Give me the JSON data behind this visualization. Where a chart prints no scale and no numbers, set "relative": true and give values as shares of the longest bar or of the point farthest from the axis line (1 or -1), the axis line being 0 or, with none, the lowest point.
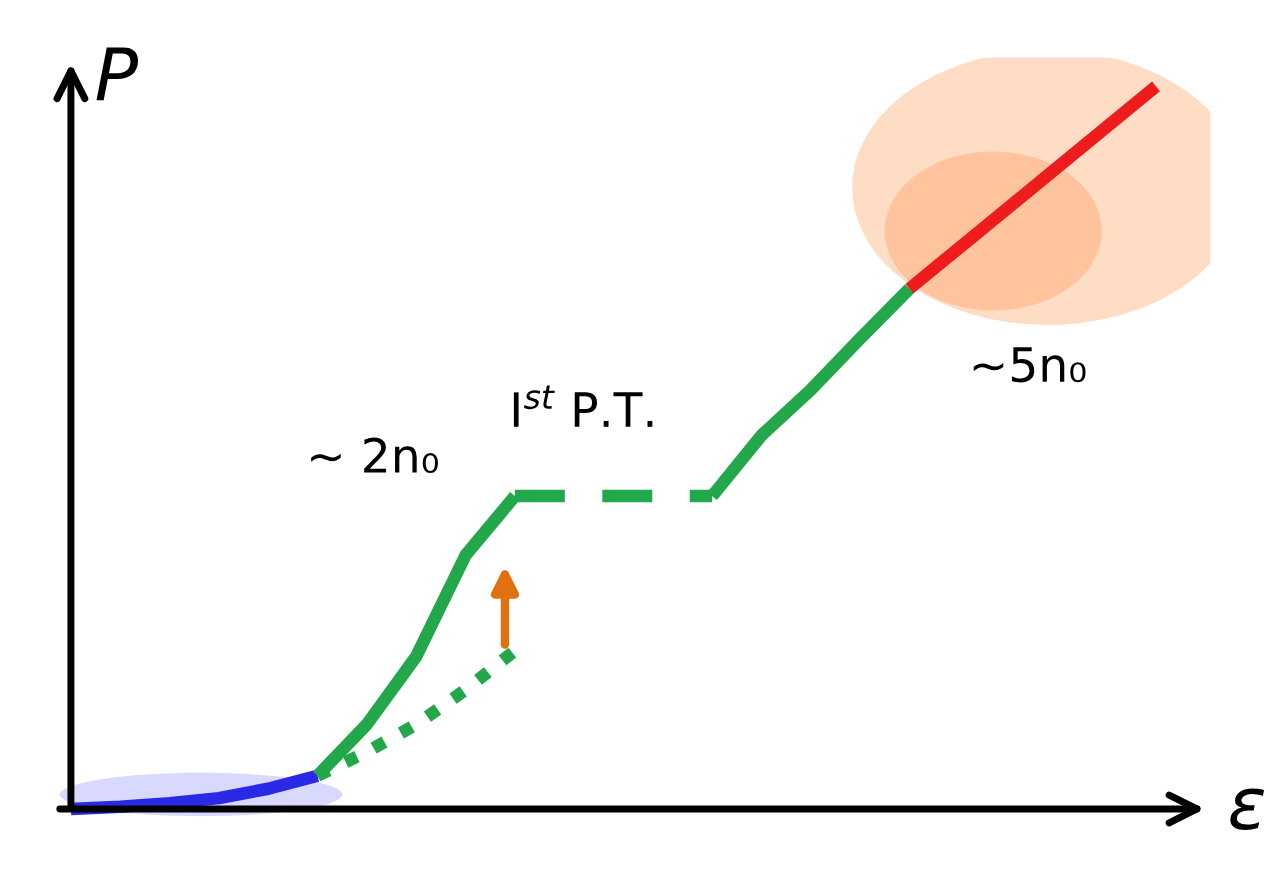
{
  "chart_data": {
    "type": "line",
    "relative": true,
    "xlabel": "ε",
    "ylabel": "P",
    "categories": [
      null,
      null,
      null,
      null,
      null,
      null,
      null,
      null,
      null,
      null,
      null,
      null,
      null,
      null,
      null,
      null,
      null,
      null,
      null,
      null,
      null,
      null,
      null
    ],
    "series": [
      {
        "color": "#2a2ae6",
        "line_style": "solid",
        "values": [
          0,
          0.003,
          0.008,
          0.015,
          0.028,
          0.046,
          null,
          null,
          null,
          null,
          null,
          null,
          null,
          null,
          null,
          null,
          null,
          null,
          null,
          null,
          null,
          null,
          null
        ]
      },
      {
        "color": "#22a84a",
        "line_style": "dotted",
        "values": [
          null,
          null,
          null,
          null,
          null,
          0.046,
          0.079,
          0.117,
          0.165,
          0.219,
          null,
          null,
          null,
          null,
          null,
          null,
          null,
          null,
          null,
          null,
          null,
          null,
          null
        ]
      },
      {
        "color": "#22a84a",
        "line_style": "solid",
        "values": [
          null,
          null,
          null,
          null,
          null,
          0.046,
          0.117,
          0.211,
          0.351,
          0.433,
          null,
          null,
          null,
          null,
          null,
          null,
          null,
          null,
          null,
          null,
          null,
          null,
          null
        ]
      },
      {
        "color": "#22a84a",
        "line_style": "dashed",
        "values": [
          null,
          null,
          null,
          null,
          null,
          null,
          null,
          null,
          null,
          0.433,
          0.433,
          0.433,
          0.433,
          0.433,
          null,
          null,
          null,
          null,
          null,
          null,
          null,
          null,
          null
        ]
      },
      {
        "color": "#22a84a",
        "line_style": "solid",
        "values": [
          null,
          null,
          null,
          null,
          null,
          null,
          null,
          null,
          null,
          null,
          null,
          null,
          null,
          0.433,
          0.517,
          0.58,
          0.651,
          0.72,
          null,
          null,
          null,
          null,
          null
        ]
      },
      {
        "color": "#ee1c1c",
        "line_style": "solid",
        "values": [
          null,
          null,
          null,
          null,
          null,
          null,
          null,
          null,
          null,
          null,
          null,
          null,
          null,
          null,
          null,
          null,
          null,
          0.72,
          0.776,
          0.832,
          0.888,
          0.944,
          1.0
        ]
      }
    ],
    "annotations": [
      "~ 2n₀",
      "I$^{st}$ P.T.",
      "~5n₀"
    ]
  }
}
